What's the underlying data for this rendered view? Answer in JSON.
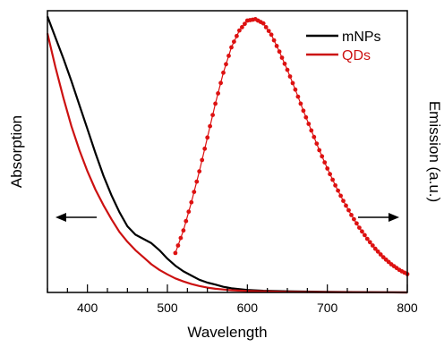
{
  "chart_data": {
    "type": "line",
    "xlabel": "Wavelength",
    "ylabel_left": "Absorption",
    "ylabel_right": "Emission (a.u.)",
    "xlim": [
      350,
      800
    ],
    "ylim": [
      0,
      1.0
    ],
    "x_ticks": [
      400,
      500,
      600,
      700,
      800
    ],
    "x_minor_step": 25,
    "y_ticks_shown": false,
    "grid": false,
    "legend_position": "top-right",
    "legend": [
      {
        "name": "mNPs",
        "color": "#000000"
      },
      {
        "name": "QDs",
        "color": "#cc1111"
      }
    ],
    "arrows": [
      {
        "direction": "left",
        "axis": "absorption"
      },
      {
        "direction": "right",
        "axis": "emission"
      }
    ],
    "series": [
      {
        "name": "mNPs",
        "kind": "absorption",
        "color": "#000000",
        "x": [
          350,
          360,
          370,
          380,
          390,
          400,
          410,
          420,
          430,
          440,
          450,
          460,
          470,
          480,
          490,
          500,
          510,
          520,
          530,
          540,
          550,
          560,
          570,
          580,
          600,
          620,
          650,
          700,
          750,
          800
        ],
        "y": [
          0.98,
          0.905,
          0.83,
          0.75,
          0.665,
          0.58,
          0.495,
          0.415,
          0.345,
          0.285,
          0.235,
          0.205,
          0.19,
          0.175,
          0.15,
          0.12,
          0.095,
          0.075,
          0.06,
          0.045,
          0.035,
          0.028,
          0.02,
          0.015,
          0.009,
          0.006,
          0.004,
          0.002,
          0.001,
          0.0
        ]
      },
      {
        "name": "QDs",
        "kind": "absorption",
        "color": "#cc1111",
        "x": [
          350,
          360,
          370,
          380,
          390,
          400,
          410,
          420,
          430,
          440,
          450,
          460,
          470,
          480,
          490,
          500,
          510,
          520,
          530,
          540,
          550,
          560,
          580,
          600,
          650,
          700,
          750,
          800
        ],
        "y": [
          0.92,
          0.8,
          0.69,
          0.59,
          0.505,
          0.43,
          0.365,
          0.31,
          0.26,
          0.215,
          0.18,
          0.15,
          0.125,
          0.1,
          0.08,
          0.064,
          0.05,
          0.039,
          0.03,
          0.023,
          0.017,
          0.013,
          0.008,
          0.005,
          0.002,
          0.001,
          0.0005,
          0.0
        ]
      },
      {
        "name": "QDs",
        "kind": "emission",
        "color": "#dd1111",
        "markers": true,
        "x": [
          510,
          520,
          530,
          540,
          550,
          560,
          570,
          580,
          590,
          600,
          610,
          620,
          630,
          640,
          650,
          660,
          670,
          680,
          690,
          700,
          710,
          720,
          730,
          740,
          750,
          760,
          770,
          780,
          790,
          800
        ],
        "y": [
          0.14,
          0.22,
          0.32,
          0.43,
          0.55,
          0.67,
          0.78,
          0.87,
          0.93,
          0.965,
          0.97,
          0.955,
          0.915,
          0.855,
          0.79,
          0.72,
          0.645,
          0.575,
          0.505,
          0.44,
          0.38,
          0.325,
          0.275,
          0.23,
          0.19,
          0.155,
          0.125,
          0.1,
          0.08,
          0.065
        ]
      }
    ]
  }
}
